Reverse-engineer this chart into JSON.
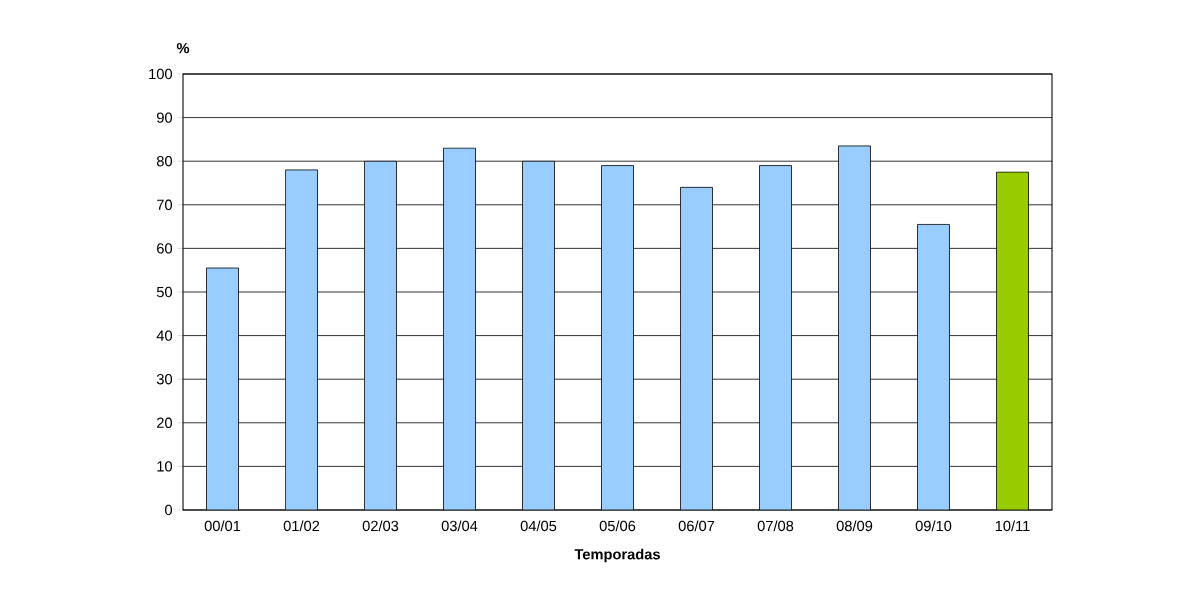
{
  "chart_data": {
    "type": "bar",
    "ylabel": "%",
    "xlabel": "Temporadas",
    "categories": [
      "00/01",
      "01/02",
      "02/03",
      "03/04",
      "04/05",
      "05/06",
      "06/07",
      "07/08",
      "08/09",
      "09/10",
      "10/11"
    ],
    "values": [
      55.5,
      78,
      80,
      83,
      80,
      79,
      74,
      79,
      83.5,
      65.5,
      77.5
    ],
    "colors": [
      "#99ccff",
      "#99ccff",
      "#99ccff",
      "#99ccff",
      "#99ccff",
      "#99ccff",
      "#99ccff",
      "#99ccff",
      "#99ccff",
      "#99ccff",
      "#99cc00"
    ],
    "ylim": [
      0,
      100
    ],
    "yticks": [
      0,
      10,
      20,
      30,
      40,
      50,
      60,
      70,
      80,
      90,
      100
    ],
    "grid": "y"
  }
}
